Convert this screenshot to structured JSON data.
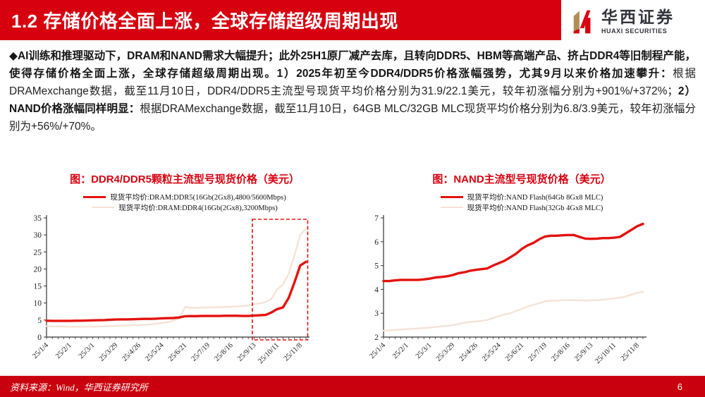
{
  "header": {
    "title": "1.2 存储价格全面上涨，全球存储超级周期出现",
    "logo": {
      "cn": "华西证券",
      "en": "HUAXI SECURITIES"
    }
  },
  "body": {
    "segments": [
      {
        "bold": true,
        "text": "◆AI训练和推理驱动下，DRAM和NAND需求大幅提升；此外25H1原厂减产去库，且转向DDR5、HBM等高端产品、挤占DDR4等旧制程产能，使得存储价格全面上涨，全球存储超级周期出现。1）2025年初至今DDR4/DDR5价格涨幅强势，尤其9月以来价格加速攀升："
      },
      {
        "bold": false,
        "text": "根据DRAMexchange数据，截至11月10日，DDR4/DDR5主流型号现货平均价格分别为31.9/22.1美元，较年初涨幅分别为+901%/+372%；"
      },
      {
        "bold": true,
        "text": "2）NAND价格涨幅同样明显："
      },
      {
        "bold": false,
        "text": "根据DRAMexchange数据，截至11月10日，64GB MLC/32GB MLC现货平均价格分别为6.8/3.9美元，较年初涨幅分别为+56%/+70%。"
      }
    ]
  },
  "colors": {
    "brand_red": "#d7000f",
    "chart_red": "#e3120e",
    "chart_pale": "#f5e3d6",
    "axis": "#333333",
    "logo_gold": "#b08d57"
  },
  "chart_data": [
    {
      "type": "line",
      "title": "图：DDR4/DDR5颗粒主流型号现货价格（美元）",
      "ylim": [
        0,
        35
      ],
      "yticks": [
        0,
        5,
        10,
        15,
        20,
        25,
        30,
        35
      ],
      "x_tick_labels": [
        "25/1/4",
        "25/2/1",
        "25/3/1",
        "25/3/29",
        "25/4/26",
        "25/5/24",
        "25/6/21",
        "25/7/19",
        "25/8/16",
        "25/9/13",
        "25/10/11",
        "25/11/8"
      ],
      "label_every": 4,
      "legend_position": "top",
      "grid": false,
      "highlight_box": {
        "from_index": 35.7,
        "to_index": 45.3,
        "color": "#e3120e"
      },
      "series": [
        {
          "name": "现货平均价:DRAM:DDR5(16Gb(2Gx8),4800/5600Mbps)",
          "color": "#e3120e",
          "width": 3.4,
          "values": [
            4.8,
            4.75,
            4.75,
            4.75,
            4.75,
            4.8,
            4.8,
            4.85,
            4.9,
            4.95,
            5.0,
            5.1,
            5.15,
            5.2,
            5.2,
            5.25,
            5.3,
            5.35,
            5.35,
            5.4,
            5.5,
            5.55,
            5.6,
            5.75,
            6.1,
            6.15,
            6.15,
            6.2,
            6.2,
            6.2,
            6.2,
            6.25,
            6.25,
            6.25,
            6.2,
            6.2,
            6.3,
            6.4,
            6.5,
            7.2,
            8.2,
            8.7,
            11.5,
            16.0,
            21.0,
            22.1
          ]
        },
        {
          "name": "现货平均价:DRAM:DDR4(16Gb(2Gx8),3200Mbps)",
          "color": "#f5e3d6",
          "width": 2.4,
          "values": [
            3.2,
            3.15,
            3.1,
            3.1,
            3.05,
            3.05,
            3.05,
            3.05,
            3.05,
            3.1,
            3.15,
            3.2,
            3.3,
            3.35,
            3.4,
            3.45,
            3.5,
            3.6,
            3.7,
            3.9,
            4.1,
            4.4,
            4.8,
            5.4,
            8.8,
            8.6,
            8.6,
            8.65,
            8.7,
            8.75,
            8.8,
            8.85,
            8.9,
            9.0,
            9.1,
            9.3,
            9.6,
            9.9,
            10.3,
            11.2,
            14.0,
            15.5,
            18.5,
            24.0,
            30.0,
            31.9
          ]
        }
      ]
    },
    {
      "type": "line",
      "title": "图：NAND主流型号现货价格（美元）",
      "ylim": [
        2,
        7
      ],
      "yticks": [
        2,
        3,
        4,
        5,
        6,
        7
      ],
      "x_tick_labels": [
        "25/1/4",
        "25/2/1",
        "25/3/1",
        "25/3/29",
        "25/4/26",
        "25/5/24",
        "25/6/21",
        "25/7/19",
        "25/8/16",
        "25/9/13",
        "25/10/11",
        "25/11/8"
      ],
      "label_every": 4,
      "legend_position": "top",
      "grid": false,
      "series": [
        {
          "name": "现货平均价:NAND Flash(64Gb 8Gx8 MLC)",
          "color": "#e3120e",
          "width": 3.4,
          "values": [
            4.35,
            4.35,
            4.38,
            4.4,
            4.4,
            4.4,
            4.4,
            4.42,
            4.45,
            4.5,
            4.52,
            4.55,
            4.6,
            4.68,
            4.72,
            4.78,
            4.82,
            4.85,
            4.88,
            5.0,
            5.1,
            5.2,
            5.35,
            5.5,
            5.7,
            5.85,
            5.95,
            6.1,
            6.22,
            6.25,
            6.25,
            6.27,
            6.28,
            6.28,
            6.2,
            6.13,
            6.12,
            6.13,
            6.15,
            6.15,
            6.17,
            6.2,
            6.35,
            6.5,
            6.65,
            6.75
          ]
        },
        {
          "name": "现货平均价:NAND Flash(32Gb 4Gx8 MLC)",
          "color": "#f5e3d6",
          "width": 2.4,
          "values": [
            2.27,
            2.28,
            2.3,
            2.32,
            2.33,
            2.35,
            2.36,
            2.38,
            2.4,
            2.42,
            2.45,
            2.47,
            2.5,
            2.55,
            2.6,
            2.63,
            2.65,
            2.68,
            2.72,
            2.8,
            2.88,
            2.95,
            3.0,
            3.1,
            3.18,
            3.28,
            3.35,
            3.42,
            3.5,
            3.52,
            3.53,
            3.54,
            3.55,
            3.55,
            3.54,
            3.53,
            3.54,
            3.55,
            3.57,
            3.6,
            3.62,
            3.65,
            3.7,
            3.78,
            3.85,
            3.9
          ]
        }
      ]
    }
  ],
  "footer": {
    "source": "资料来源：Wind，华西证券研究所",
    "page": "6"
  }
}
